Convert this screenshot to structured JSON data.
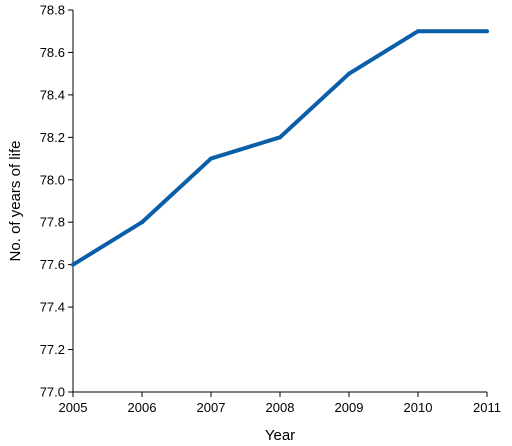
{
  "chart_data": {
    "type": "line",
    "xlabel": "Year",
    "ylabel": "No. of years of life",
    "x": [
      2005,
      2006,
      2007,
      2008,
      2009,
      2010,
      2011
    ],
    "series": [
      {
        "values": [
          77.6,
          77.8,
          78.1,
          78.2,
          78.5,
          78.7,
          78.7
        ]
      }
    ],
    "xlim": [
      2005,
      2011
    ],
    "ylim": [
      77.0,
      78.8
    ],
    "yticks": [
      "77.0",
      "77.2",
      "77.4",
      "77.6",
      "77.8",
      "78.0",
      "78.2",
      "78.4",
      "78.6",
      "78.8"
    ],
    "xticks": [
      "2005",
      "2006",
      "2007",
      "2008",
      "2009",
      "2010",
      "2011"
    ],
    "grid": false,
    "legend": "none",
    "line_color": "#0b5ea8"
  }
}
